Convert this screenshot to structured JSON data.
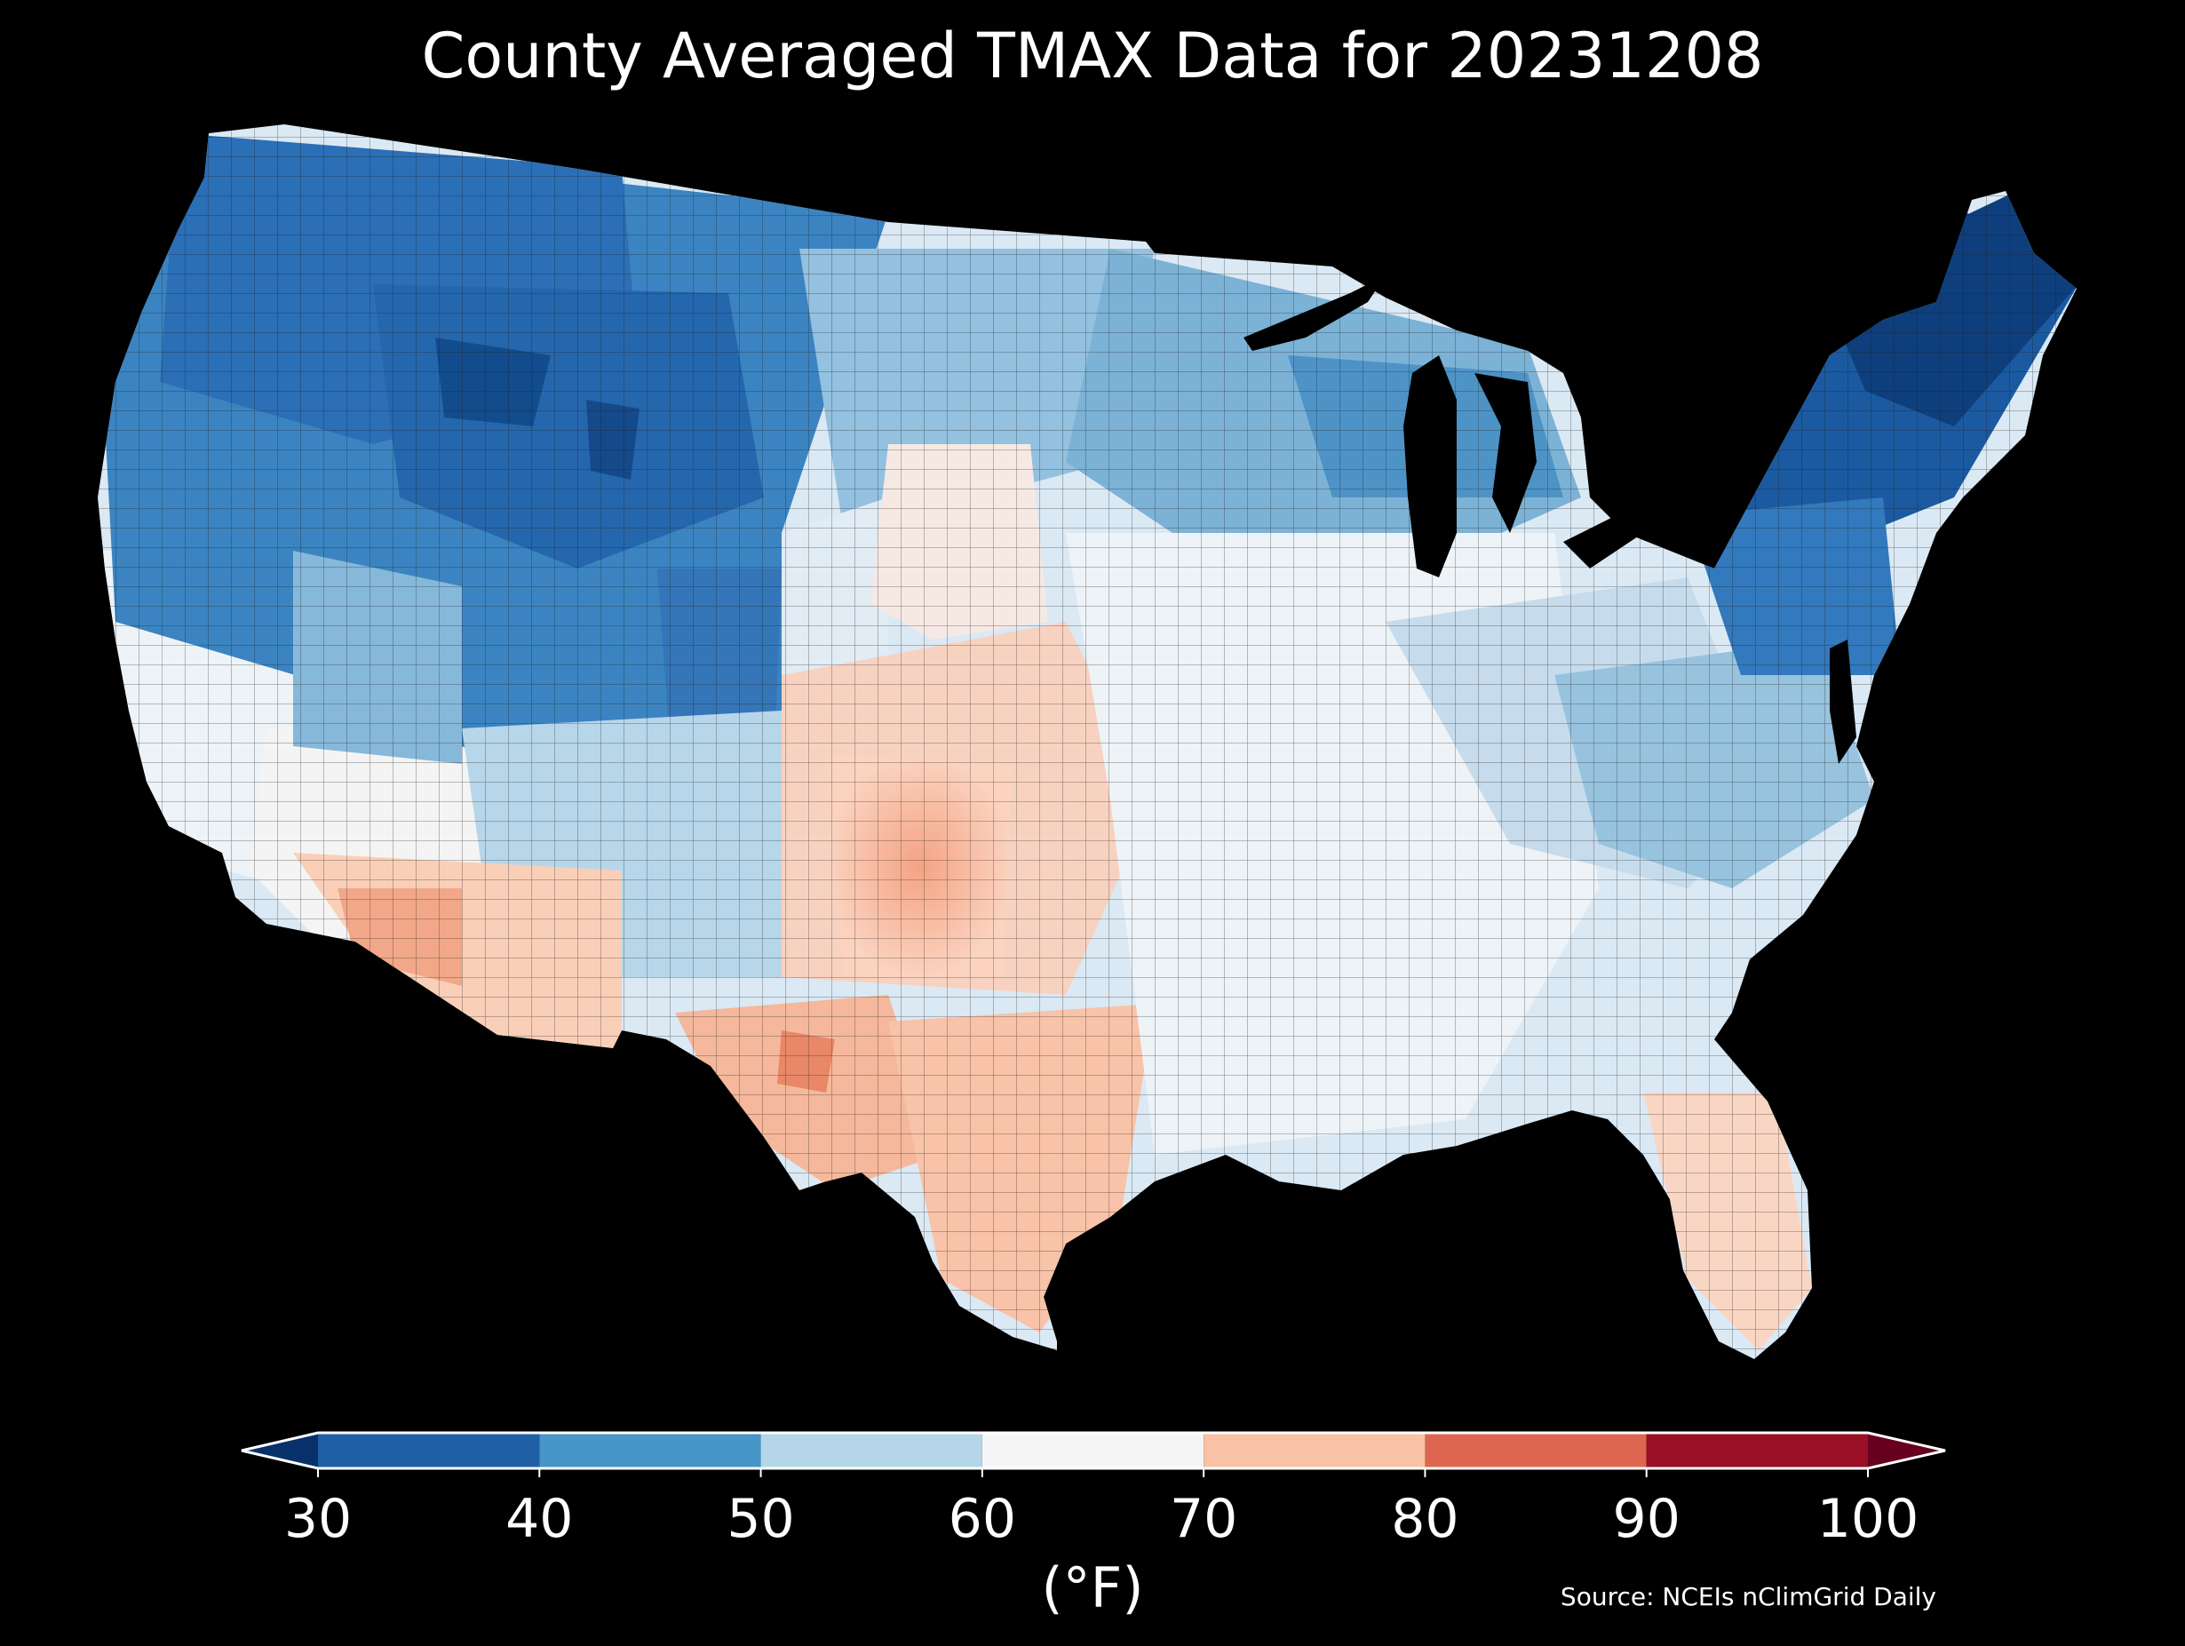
{
  "title": "County Averaged TMAX Data for 20231208",
  "colorbar": {
    "unit_label": "(°F)",
    "ticks": [
      "30",
      "40",
      "50",
      "60",
      "70",
      "80",
      "90",
      "100"
    ],
    "bins": [
      {
        "min": 30,
        "max": 40,
        "color": "#1f5fa6"
      },
      {
        "min": 40,
        "max": 50,
        "color": "#4895c8"
      },
      {
        "min": 50,
        "max": 60,
        "color": "#b4d6e8"
      },
      {
        "min": 60,
        "max": 70,
        "color": "#f5f5f5"
      },
      {
        "min": 70,
        "max": 80,
        "color": "#f9c2a6"
      },
      {
        "min": 80,
        "max": 90,
        "color": "#de6650"
      },
      {
        "min": 90,
        "max": 100,
        "color": "#9a0e26"
      }
    ],
    "under_color": "#08306b",
    "over_color": "#67001f"
  },
  "source": "Source: NCEIs nClimGrid Daily",
  "colors": {
    "background": "#000000",
    "water": "#000000",
    "county_border": "#222222"
  }
}
